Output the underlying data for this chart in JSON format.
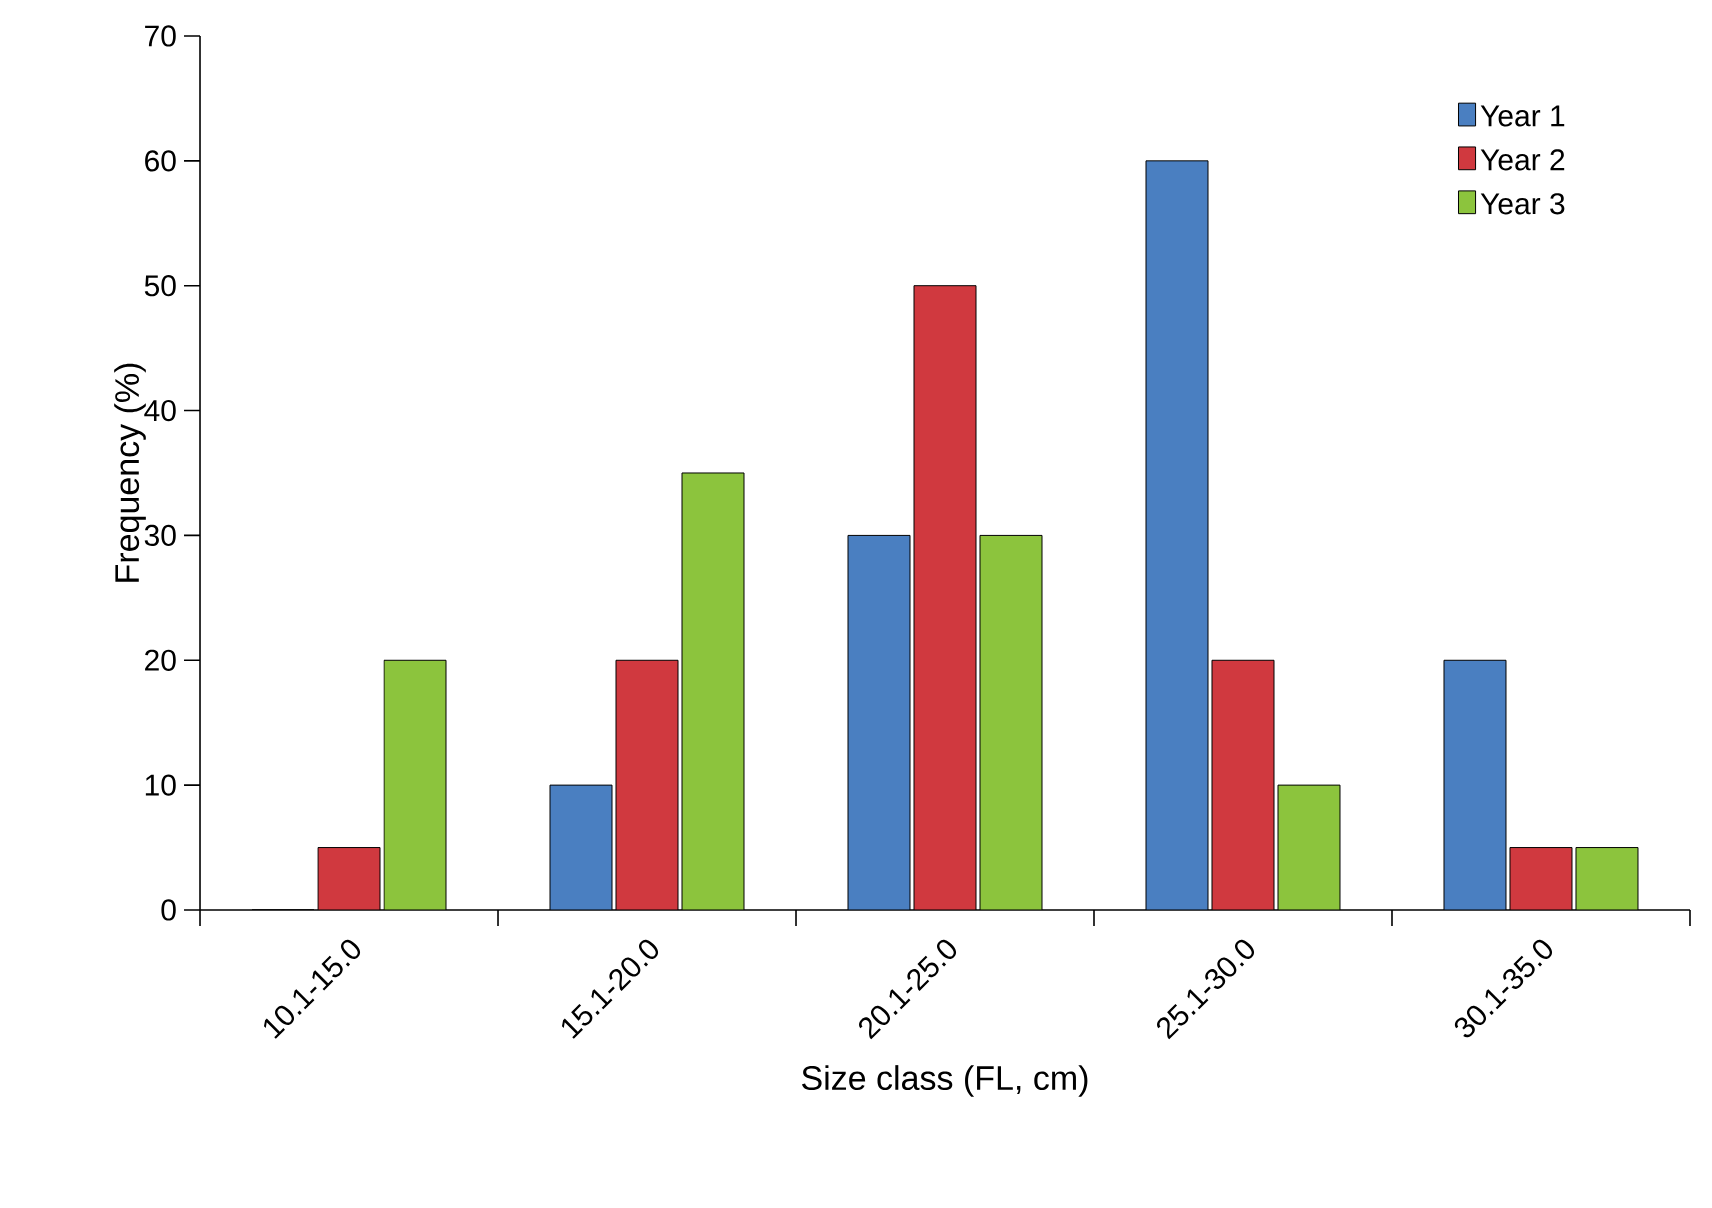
{
  "chart_data": {
    "type": "bar",
    "xlabel": "Size class (FL, cm)",
    "ylabel": "Frequency (%)",
    "categories": [
      "10.1-15.0",
      "15.1-20.0",
      "20.1-25.0",
      "25.1-30.0",
      "30.1-35.0"
    ],
    "series": [
      {
        "name": "Year 1",
        "color": "#4a7fc1",
        "values": [
          0,
          10,
          30,
          60,
          20
        ]
      },
      {
        "name": "Year 2",
        "color": "#d0393f",
        "values": [
          5,
          20,
          50,
          20,
          5
        ]
      },
      {
        "name": "Year 3",
        "color": "#8cc43d",
        "values": [
          20,
          35,
          30,
          10,
          5
        ]
      }
    ],
    "ylim": [
      0,
      70
    ],
    "yticks": [
      0,
      10,
      20,
      30,
      40,
      50,
      60,
      70
    ],
    "grid": false,
    "legend": "top right"
  }
}
